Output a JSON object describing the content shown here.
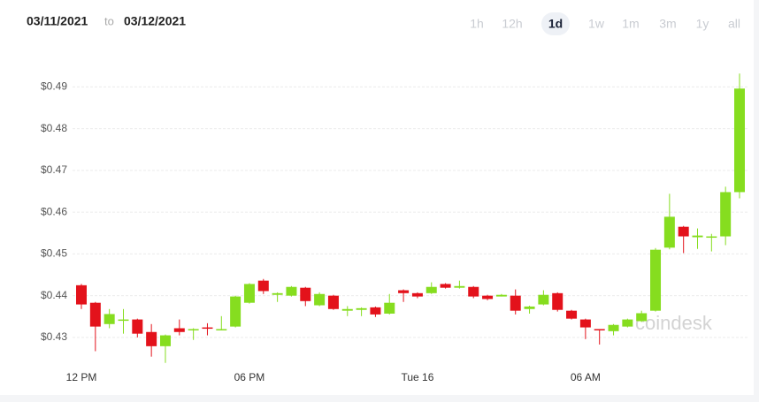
{
  "header": {
    "from": "03/11/2021",
    "separator": "to",
    "to": "03/12/2021",
    "ranges": [
      "1h",
      "12h",
      "1d",
      "1w",
      "1m",
      "3m",
      "1y",
      "all"
    ],
    "selected": "1d"
  },
  "chart_data": {
    "type": "candlestick",
    "watermark": "coindesk",
    "up_color": "#86dd1f",
    "down_color": "#e3121b",
    "grid": true,
    "ylim": [
      0.423,
      0.496
    ],
    "yticks": [
      {
        "value": 0.43,
        "label": "$0.43"
      },
      {
        "value": 0.44,
        "label": "$0.44"
      },
      {
        "value": 0.45,
        "label": "$0.45"
      },
      {
        "value": 0.46,
        "label": "$0.46"
      },
      {
        "value": 0.47,
        "label": "$0.47"
      },
      {
        "value": 0.48,
        "label": "$0.48"
      },
      {
        "value": 0.49,
        "label": "$0.49"
      }
    ],
    "categories": [
      "12 PM",
      null,
      null,
      null,
      null,
      null,
      null,
      null,
      null,
      null,
      null,
      null,
      "06 PM",
      null,
      null,
      null,
      null,
      null,
      null,
      null,
      null,
      null,
      null,
      null,
      "Tue 16",
      null,
      null,
      null,
      null,
      null,
      null,
      null,
      null,
      null,
      null,
      null,
      "06 AM",
      null,
      null,
      null,
      null,
      null,
      null,
      null,
      null,
      null,
      null,
      null
    ],
    "open": [
      0.4425,
      0.4383,
      0.4332,
      0.434,
      0.4343,
      0.4313,
      0.4279,
      0.4322,
      0.4317,
      0.4324,
      0.4318,
      0.4326,
      0.4383,
      0.4436,
      0.4402,
      0.44,
      0.4419,
      0.4377,
      0.44,
      0.4364,
      0.4366,
      0.4372,
      0.4357,
      0.4413,
      0.4406,
      0.4406,
      0.4428,
      0.4419,
      0.4421,
      0.44,
      0.4398,
      0.44,
      0.4368,
      0.4379,
      0.4406,
      0.4364,
      0.4343,
      0.432,
      0.4315,
      0.4326,
      0.4339,
      0.4364,
      0.4515,
      0.4565,
      0.454,
      0.4541,
      0.4542,
      0.4648
    ],
    "high": [
      0.4428,
      0.4385,
      0.4368,
      0.4368,
      0.4345,
      0.4332,
      0.4307,
      0.4343,
      0.4322,
      0.4334,
      0.4351,
      0.44,
      0.443,
      0.444,
      0.4408,
      0.4423,
      0.4421,
      0.4408,
      0.4402,
      0.4375,
      0.4372,
      0.4374,
      0.4404,
      0.4415,
      0.4408,
      0.4432,
      0.443,
      0.4436,
      0.4423,
      0.4402,
      0.4404,
      0.4415,
      0.4376,
      0.4413,
      0.4408,
      0.4366,
      0.4345,
      0.432,
      0.4332,
      0.4345,
      0.4364,
      0.4514,
      0.4644,
      0.4567,
      0.4561,
      0.4548,
      0.4661,
      0.4932
    ],
    "low": [
      0.4368,
      0.4267,
      0.4322,
      0.4309,
      0.43,
      0.4254,
      0.4239,
      0.4305,
      0.4294,
      0.4305,
      0.4317,
      0.4324,
      0.4381,
      0.4404,
      0.4385,
      0.4398,
      0.4375,
      0.4375,
      0.4366,
      0.4351,
      0.4351,
      0.4349,
      0.4355,
      0.4385,
      0.4394,
      0.4404,
      0.4417,
      0.4417,
      0.4394,
      0.4389,
      0.4398,
      0.4355,
      0.4357,
      0.4377,
      0.4362,
      0.4343,
      0.4296,
      0.4283,
      0.4305,
      0.4324,
      0.4337,
      0.4362,
      0.4511,
      0.4502,
      0.4512,
      0.4506,
      0.4521,
      0.4633
    ],
    "close": [
      0.4379,
      0.4326,
      0.4356,
      0.4343,
      0.4309,
      0.4279,
      0.4305,
      0.4313,
      0.432,
      0.4322,
      0.432,
      0.4398,
      0.4428,
      0.4411,
      0.4406,
      0.4421,
      0.4387,
      0.4404,
      0.4368,
      0.4368,
      0.437,
      0.4355,
      0.4383,
      0.4406,
      0.4398,
      0.4421,
      0.4419,
      0.4423,
      0.4398,
      0.4392,
      0.4402,
      0.4364,
      0.4374,
      0.4402,
      0.4366,
      0.4345,
      0.4324,
      0.4319,
      0.433,
      0.4343,
      0.4358,
      0.451,
      0.4589,
      0.4542,
      0.4544,
      0.4542,
      0.4648,
      0.4896
    ]
  }
}
